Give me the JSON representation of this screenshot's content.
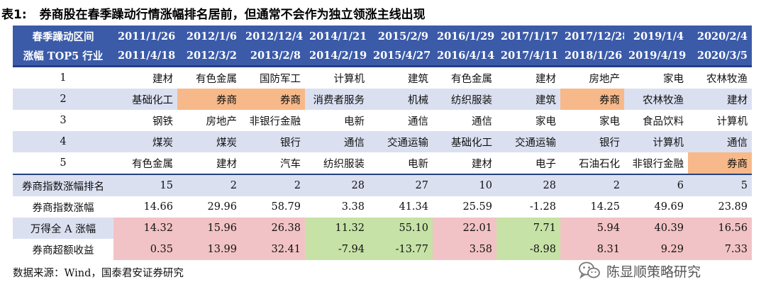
{
  "title": {
    "prefix": "表1:",
    "text": "券商股在春季躁动行情涨幅排名居前，但通常不会作为独立领涨主线出现"
  },
  "header": {
    "row1_label": "春季躁动区间",
    "row2_label": "涨幅 TOP5 行业",
    "start_dates": [
      "2011/1/26",
      "2012/1/6",
      "2012/12/4",
      "2014/1/21",
      "2015/2/9",
      "2016/1/29",
      "2017/1/17",
      "2017/12/28",
      "2019/1/4",
      "2020/2/4"
    ],
    "end_dates": [
      "2011/4/18",
      "2012/3/2",
      "2013/2/8",
      "2014/2/19",
      "2015/4/27",
      "2016/4/14",
      "2017/4/11",
      "2018/1/26",
      "2019/4/19",
      "2020/3/5"
    ]
  },
  "rank_rows": [
    {
      "label": "1",
      "cells": [
        "建材",
        "有色金属",
        "国防军工",
        "计算机",
        "建筑",
        "有色金属",
        "建材",
        "房地产",
        "家电",
        "农林牧渔"
      ]
    },
    {
      "label": "2",
      "cells": [
        "基础化工",
        "券商",
        "券商",
        "消费者服务",
        "机械",
        "纺织服装",
        "建筑",
        "券商",
        "农林牧渔",
        "建材"
      ]
    },
    {
      "label": "3",
      "cells": [
        "钢铁",
        "房地产",
        "非银行金融",
        "电新",
        "通信",
        "通信",
        "家电",
        "家电",
        "食品饮料",
        "计算机"
      ]
    },
    {
      "label": "4",
      "cells": [
        "煤炭",
        "煤炭",
        "银行",
        "通信",
        "交通运输",
        "基础化工",
        "交通运输",
        "银行",
        "计算机",
        "通信"
      ]
    },
    {
      "label": "5",
      "cells": [
        "有色金属",
        "建材",
        "汽车",
        "纺织服装",
        "电新",
        "建材",
        "电子",
        "石油石化",
        "非银行金融",
        "券商"
      ]
    }
  ],
  "stat_rows": [
    {
      "label": "券商指数涨幅排名",
      "cells": [
        "15",
        "2",
        "2",
        "28",
        "27",
        "10",
        "28",
        "2",
        "6",
        "5"
      ]
    },
    {
      "label": "券商指数涨幅",
      "cells": [
        "14.66",
        "29.96",
        "58.79",
        "3.38",
        "41.34",
        "25.59",
        "-1.28",
        "14.25",
        "49.69",
        "23.89"
      ]
    },
    {
      "label": "万得全 A 涨幅",
      "cells": [
        "14.32",
        "15.96",
        "26.38",
        "11.32",
        "55.10",
        "22.01",
        "7.71",
        "5.94",
        "40.39",
        "16.56"
      ]
    },
    {
      "label": "券商超额收益",
      "cells": [
        "0.35",
        "13.99",
        "32.41",
        "-7.94",
        "-13.77",
        "3.58",
        "-8.98",
        "8.31",
        "9.29",
        "7.33"
      ]
    }
  ],
  "colors": {
    "header_bg": "#3b5ba8",
    "band_bg": "#dbe0f1",
    "highlight_broker": "#f7b98a",
    "positive_excess": "#f2c3c6",
    "negative_excess": "#c7e2a6"
  },
  "footer": "数据来源：Wind，国泰君安证券研究",
  "watermark": {
    "icon": "wechat-icon",
    "text": "陈显顺策略研究"
  }
}
